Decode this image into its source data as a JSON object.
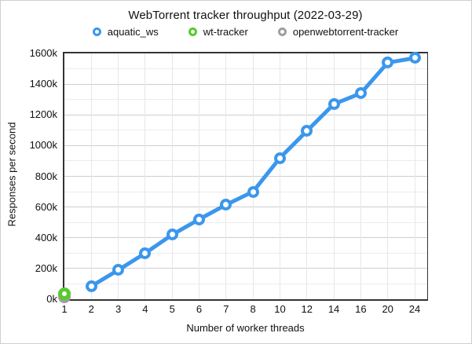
{
  "title": "WebTorrent tracker throughput (2022-03-29)",
  "legend_order": [
    "aquatic_ws",
    "wt-tracker",
    "openwebtorrent-tracker"
  ],
  "chart_data": {
    "type": "line",
    "title": "WebTorrent tracker throughput (2022-03-29)",
    "xlabel": "Number of worker threads",
    "ylabel": "Responses per second",
    "x_categories": [
      "1",
      "2",
      "3",
      "4",
      "5",
      "6",
      "7",
      "8",
      "10",
      "12",
      "14",
      "16",
      "20",
      "24"
    ],
    "ylim_k": [
      0,
      1600
    ],
    "y_tick_labels": [
      "0k",
      "200k",
      "400k",
      "600k",
      "800k",
      "1000k",
      "1200k",
      "1400k",
      "1600k"
    ],
    "y_label_step_k": 200,
    "y_grid_step_k": 100,
    "grid": true,
    "legend_position": "top",
    "series": [
      {
        "name": "aquatic_ws",
        "color": "#3b97ed",
        "marker": "ring",
        "points": [
          {
            "x": "2",
            "y_k": 85
          },
          {
            "x": "3",
            "y_k": 190
          },
          {
            "x": "4",
            "y_k": 300
          },
          {
            "x": "5",
            "y_k": 420
          },
          {
            "x": "6",
            "y_k": 520
          },
          {
            "x": "7",
            "y_k": 615
          },
          {
            "x": "8",
            "y_k": 700
          },
          {
            "x": "10",
            "y_k": 920
          },
          {
            "x": "12",
            "y_k": 1095
          },
          {
            "x": "14",
            "y_k": 1270
          },
          {
            "x": "16",
            "y_k": 1340
          },
          {
            "x": "20",
            "y_k": 1540
          },
          {
            "x": "24",
            "y_k": 1570
          }
        ]
      },
      {
        "name": "openwebtorrent-tracker",
        "color": "#9e9e9e",
        "marker": "ring",
        "points": [
          {
            "x": "1",
            "y_k": 15
          }
        ]
      },
      {
        "name": "wt-tracker",
        "color": "#55cb2e",
        "marker": "ring",
        "points": [
          {
            "x": "1",
            "y_k": 35
          }
        ]
      }
    ]
  }
}
